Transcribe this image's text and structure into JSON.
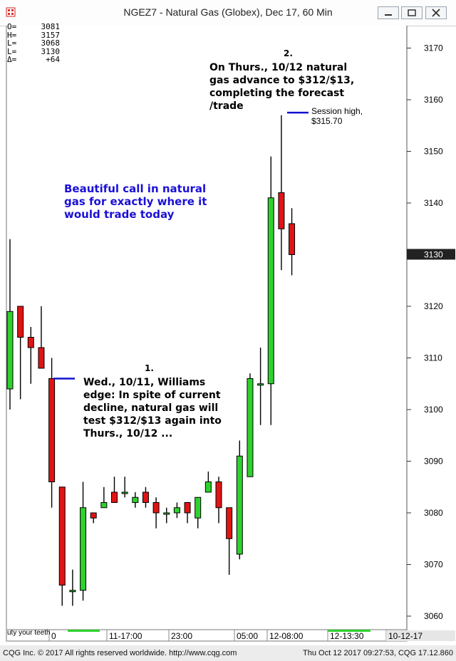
{
  "window": {
    "title": "NGEZ7 - Natural Gas (Globex), Dec 17, 60 Min"
  },
  "ohlc_panel": [
    {
      "label": "O=",
      "value": "3081"
    },
    {
      "label": "H=",
      "value": "3157"
    },
    {
      "label": "L=",
      "value": "3068"
    },
    {
      "label": "L=",
      "value": "3130"
    },
    {
      "label": "Δ=",
      "value": "+64"
    }
  ],
  "annotations": {
    "blue_note": [
      "Beautiful call in natural",
      "gas for exactly where it",
      "would trade today"
    ],
    "note1_number": "1.",
    "note1": [
      "Wed., 10/11, Williams",
      "edge: In spite of current",
      "decline, natural gas will",
      "test $312/$13 again into",
      "Thurs., 10/12 ..."
    ],
    "note2_number": "2.",
    "note2": [
      "On Thurs., 10/12 natural",
      "gas advance to $312/$13,",
      "completing the forecast",
      "/trade"
    ],
    "session_high": [
      "Session high,",
      "$315.70"
    ],
    "teeth": "uty your teeth"
  },
  "chart_data": {
    "type": "candlestick",
    "ylim": [
      3057,
      3177
    ],
    "y_ticks": [
      3060,
      3070,
      3080,
      3090,
      3100,
      3110,
      3120,
      3130,
      3140,
      3150,
      3160,
      3170
    ],
    "last_price": "3130",
    "x_labels": [
      "0",
      "11-17:00",
      "23:00",
      "05:00",
      "12-08:00",
      "12-13:30",
      "10-12-17"
    ],
    "colors": {
      "up": "#2ed12e",
      "down": "#e01414",
      "wick": "#000000",
      "marker": "#1010d0"
    },
    "candles": [
      {
        "o": 3104,
        "h": 3133,
        "l": 3100,
        "c": 3119
      },
      {
        "o": 3120,
        "h": 3120,
        "l": 3102,
        "c": 3114
      },
      {
        "o": 3114,
        "h": 3116,
        "l": 3105,
        "c": 3112
      },
      {
        "o": 3112,
        "h": 3120,
        "l": 3109,
        "c": 3108
      },
      {
        "o": 3106,
        "h": 3110,
        "l": 3081,
        "c": 3086
      },
      {
        "o": 3085,
        "h": 3085,
        "l": 3062,
        "c": 3066
      },
      {
        "o": 3065,
        "h": 3069,
        "l": 3062,
        "c": 3065
      },
      {
        "o": 3065,
        "h": 3086,
        "l": 3063,
        "c": 3081
      },
      {
        "o": 3080,
        "h": 3080,
        "l": 3078,
        "c": 3079
      },
      {
        "o": 3081,
        "h": 3085,
        "l": 3081,
        "c": 3082
      },
      {
        "o": 3084,
        "h": 3087,
        "l": 3082,
        "c": 3082
      },
      {
        "o": 3084,
        "h": 3087,
        "l": 3083,
        "c": 3084
      },
      {
        "o": 3082,
        "h": 3084,
        "l": 3081,
        "c": 3083
      },
      {
        "o": 3084,
        "h": 3085,
        "l": 3081,
        "c": 3082
      },
      {
        "o": 3082,
        "h": 3083,
        "l": 3077,
        "c": 3080
      },
      {
        "o": 3080,
        "h": 3081,
        "l": 3078,
        "c": 3080
      },
      {
        "o": 3080,
        "h": 3082,
        "l": 3079,
        "c": 3081
      },
      {
        "o": 3082,
        "h": 3082,
        "l": 3078,
        "c": 3080
      },
      {
        "o": 3079,
        "h": 3083,
        "l": 3077,
        "c": 3083
      },
      {
        "o": 3084,
        "h": 3088,
        "l": 3084,
        "c": 3086
      },
      {
        "o": 3086,
        "h": 3087,
        "l": 3078,
        "c": 3081
      },
      {
        "o": 3081,
        "h": 3081,
        "l": 3068,
        "c": 3075
      },
      {
        "o": 3072,
        "h": 3094,
        "l": 3071,
        "c": 3091
      },
      {
        "o": 3087,
        "h": 3107,
        "l": 3087,
        "c": 3106
      },
      {
        "o": 3105,
        "h": 3112,
        "l": 3097,
        "c": 3105
      },
      {
        "o": 3105,
        "h": 3149,
        "l": 3097,
        "c": 3141
      },
      {
        "o": 3142,
        "h": 3157,
        "l": 3127,
        "c": 3135
      },
      {
        "o": 3136,
        "h": 3139,
        "l": 3126,
        "c": 3130
      }
    ]
  }
}
